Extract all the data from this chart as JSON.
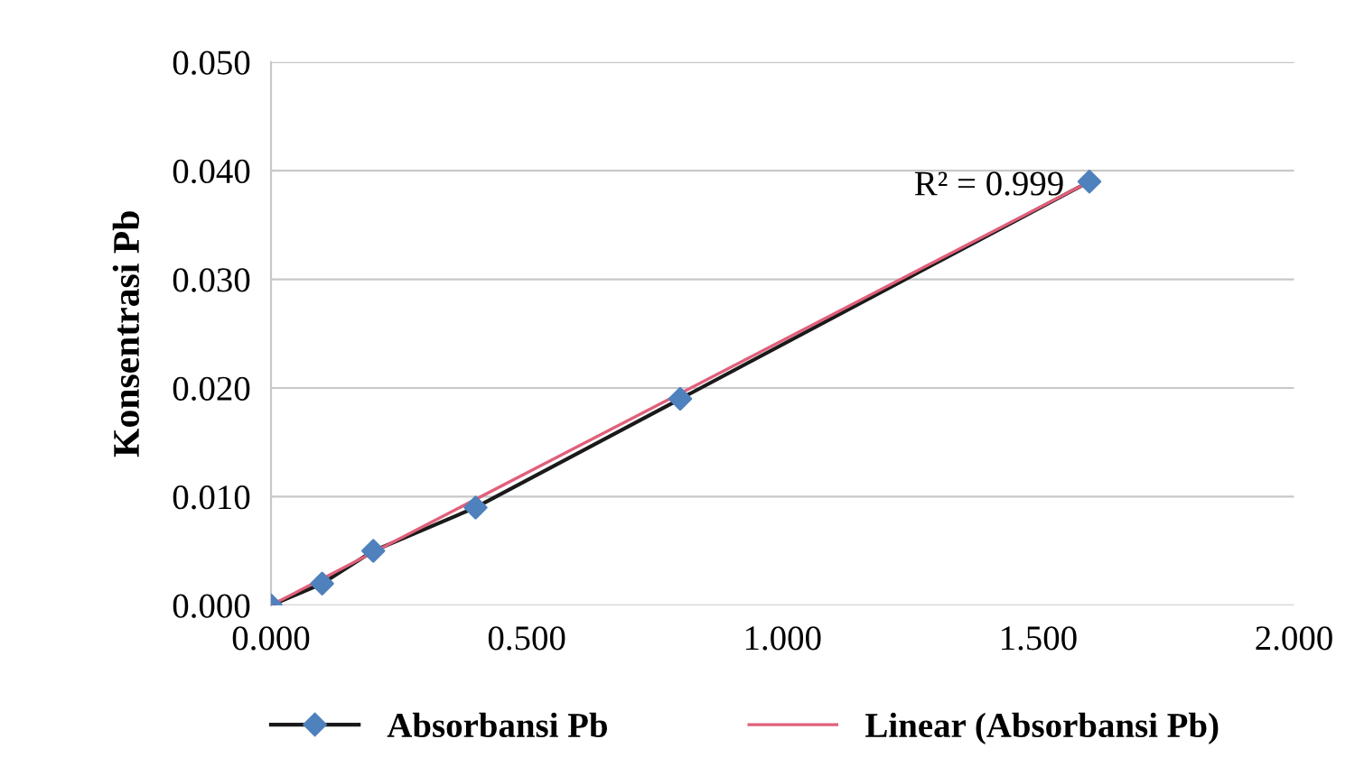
{
  "chart_data": {
    "type": "line",
    "ylabel": "Konsentrasi Pb",
    "series": [
      {
        "name": "Absorbansi Pb",
        "color": "#1a1a1a",
        "colors": [
          "#4f81bd",
          "#4f81bd",
          "#4f81bd",
          "#4f81bd",
          "#4f81bd",
          "#4f81bd"
        ],
        "marker": "diamond",
        "x": [
          0,
          0.1,
          0.2,
          0.4,
          0.8,
          1.6
        ],
        "values": [
          0,
          0.002,
          0.005,
          0.009,
          0.019,
          0.039
        ]
      },
      {
        "name": "Linear (Absorbansi Pb)",
        "color": "#e0607a",
        "marker": "none",
        "x": [
          0,
          1.6
        ],
        "values": [
          0,
          0.039
        ]
      }
    ],
    "xlim": [
      0,
      2
    ],
    "xticks": [
      {
        "value": 0,
        "label": "0.000"
      },
      {
        "value": 0.5,
        "label": "0.500"
      },
      {
        "value": 1,
        "label": "1.000"
      },
      {
        "value": 1.5,
        "label": "1.500"
      },
      {
        "value": 2,
        "label": "2.000"
      }
    ],
    "ylim": [
      0,
      0.05
    ],
    "yticks": [
      {
        "value": 0,
        "label": "0.000"
      },
      {
        "value": 0.01,
        "label": "0.010"
      },
      {
        "value": 0.02,
        "label": "0.020"
      },
      {
        "value": 0.03,
        "label": "0.030"
      },
      {
        "value": 0.04,
        "label": "0.040"
      },
      {
        "value": 0.05,
        "label": "0.050"
      }
    ],
    "annotations": [
      {
        "text": "R² = 0.999",
        "x": 1.6,
        "y": 0.039
      }
    ],
    "grid": "y",
    "legend": "bottom"
  }
}
